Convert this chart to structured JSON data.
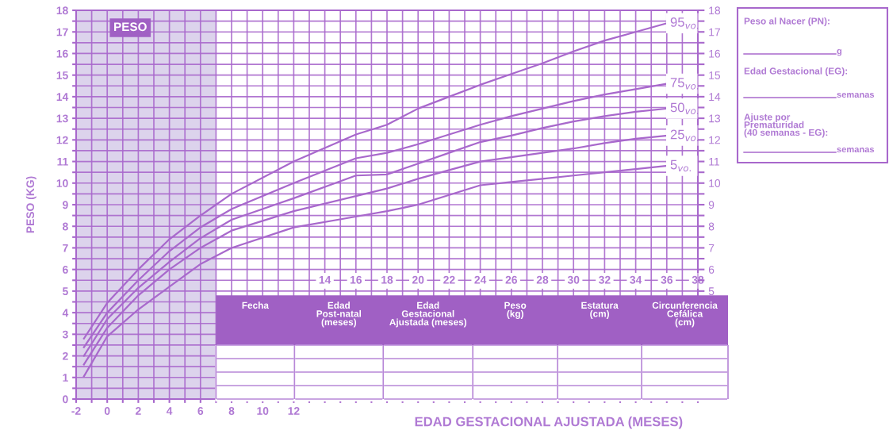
{
  "chart_data": [
    {
      "type": "line",
      "xlabel": "EDAD GESTACIONAL AJUSTADA (MESES)",
      "ylabel": "PESO (KG)",
      "x": [
        -1.5,
        0,
        2,
        4,
        6,
        8,
        12,
        16,
        18,
        20,
        22,
        24,
        26,
        28,
        30,
        32,
        34,
        36
      ],
      "series": [
        {
          "name": "95$_{vo.}$",
          "color": "#a868cc",
          "values": [
            2.8,
            4.45,
            6.0,
            7.4,
            8.5,
            9.5,
            11.0,
            12.25,
            12.7,
            13.45,
            14.0,
            14.55,
            15.05,
            15.55,
            16.1,
            16.6,
            17.0,
            17.4
          ]
        },
        {
          "name": "75$_{vo.}$",
          "color": "#a868cc",
          "values": [
            2.4,
            4.0,
            5.5,
            6.85,
            7.95,
            8.8,
            10.0,
            11.15,
            11.4,
            11.8,
            12.25,
            12.7,
            13.1,
            13.45,
            13.8,
            14.1,
            14.35,
            14.6
          ]
        },
        {
          "name": "50$_{vo.}$",
          "color": "#a868cc",
          "values": [
            2.0,
            3.7,
            5.15,
            6.35,
            7.45,
            8.3,
            9.3,
            10.35,
            10.4,
            10.9,
            11.4,
            11.9,
            12.2,
            12.55,
            12.85,
            13.1,
            13.3,
            13.45
          ]
        },
        {
          "name": "25$_{vo.}$",
          "color": "#a868cc",
          "values": [
            1.6,
            3.3,
            4.8,
            6.0,
            7.0,
            7.8,
            8.7,
            9.4,
            9.75,
            10.2,
            10.6,
            11.0,
            11.2,
            11.4,
            11.6,
            11.85,
            12.05,
            12.2
          ]
        },
        {
          "name": "5$_{vo.}$",
          "color": "#a868cc",
          "values": [
            1.05,
            2.9,
            4.15,
            5.2,
            6.25,
            7.0,
            7.95,
            8.45,
            8.7,
            9.0,
            9.45,
            9.9,
            10.05,
            10.2,
            10.35,
            10.5,
            10.65,
            10.8
          ]
        }
      ],
      "xlim": [
        -2,
        38
      ],
      "xticks": [
        -2,
        {
          "value": -1,
          "label": null
        },
        0,
        {
          "value": 1,
          "label": null
        },
        2,
        {
          "value": 3,
          "label": null
        },
        4,
        {
          "value": 5,
          "label": null
        },
        6,
        {
          "value": 7,
          "label": null
        },
        8,
        {
          "value": 9,
          "label": null
        },
        10,
        {
          "value": 11,
          "label": null
        },
        12,
        {
          "value": 13,
          "label": null
        },
        {
          "value": 14,
          "label": null
        },
        {
          "value": 15,
          "label": null
        },
        {
          "value": 16,
          "label": null
        },
        {
          "value": 17,
          "label": null
        },
        {
          "value": 18,
          "label": null
        },
        {
          "value": 19,
          "label": null
        },
        {
          "value": 20,
          "label": null
        },
        {
          "value": 21,
          "label": null
        },
        {
          "value": 22,
          "label": null
        },
        {
          "value": 23,
          "label": null
        },
        {
          "value": 24,
          "label": null
        },
        {
          "value": 25,
          "label": null
        },
        {
          "value": 26,
          "label": null
        },
        {
          "value": 27,
          "label": null
        },
        {
          "value": 28,
          "label": null
        },
        {
          "value": 29,
          "label": null
        },
        {
          "value": 30,
          "label": null
        },
        {
          "value": 31,
          "label": null
        },
        {
          "value": 32,
          "label": null
        },
        {
          "value": 33,
          "label": null
        },
        {
          "value": 34,
          "label": null
        },
        {
          "value": 35,
          "label": null
        },
        {
          "value": 36,
          "label": null
        },
        {
          "value": 37,
          "label": null
        },
        {
          "value": 38,
          "label": null
        }
      ],
      "x2lim": [
        -2,
        38
      ],
      "x2ticks": [
        14,
        16,
        18,
        20,
        22,
        24,
        26,
        28,
        30,
        32,
        34,
        36,
        38
      ],
      "ylim": [
        0,
        18
      ],
      "yticks": [
        0,
        {
          "value": 0.5,
          "label": null
        },
        1,
        {
          "value": 1.5,
          "label": null
        },
        2,
        {
          "value": 2.5,
          "label": null
        },
        3,
        {
          "value": 3.5,
          "label": null
        },
        4,
        {
          "value": 4.5,
          "label": null
        },
        5,
        {
          "value": 5.5,
          "label": null
        },
        6,
        {
          "value": 6.5,
          "label": null
        },
        7,
        {
          "value": 7.5,
          "label": null
        },
        8,
        {
          "value": 8.5,
          "label": null
        },
        9,
        {
          "value": 9.5,
          "label": null
        },
        10,
        {
          "value": 10.5,
          "label": null
        },
        11,
        {
          "value": 11.5,
          "label": null
        },
        12,
        {
          "value": 12.5,
          "label": null
        },
        13,
        {
          "value": 13.5,
          "label": null
        },
        14,
        {
          "value": 14.5,
          "label": null
        },
        15,
        {
          "value": 15.5,
          "label": null
        },
        16,
        {
          "value": 16.5,
          "label": null
        },
        17,
        {
          "value": 17.5,
          "label": null
        },
        18
      ],
      "y2lim": [
        0,
        18
      ],
      "y2ticks": [
        5,
        {
          "value": 5.5,
          "label": null
        },
        6,
        {
          "value": 6.5,
          "label": null
        },
        7,
        {
          "value": 7.5,
          "label": null
        },
        8,
        {
          "value": 8.5,
          "label": null
        },
        9,
        {
          "value": 9.5,
          "label": null
        },
        10,
        {
          "value": 10.5,
          "label": null
        },
        11,
        {
          "value": 11.5,
          "label": null
        },
        12,
        {
          "value": 12.5,
          "label": null
        },
        13,
        {
          "value": 13.5,
          "label": null
        },
        14,
        {
          "value": 14.5,
          "label": null
        },
        15,
        {
          "value": 15.5,
          "label": null
        },
        16,
        {
          "value": 16.5,
          "label": null
        },
        17,
        {
          "value": 17.5,
          "label": null
        },
        18
      ],
      "bands": [
        {
          "axis": "x",
          "from": -2,
          "to": 7,
          "color": "#dcd3ec"
        }
      ],
      "grid": true,
      "marker": "none",
      "line_style": "solid",
      "legend": false,
      "annotations": [
        "PESO",
        "Fecha",
        "Edad\nPost-natal\n(meses)",
        "Edad\nGestacional\nAjustada (meses)",
        "Peso\n(kg)",
        "Estatura\n(cm)",
        "Circunferencia\nCefálica\n(cm)"
      ]
    },
    {
      "type": "other",
      "annotations": [
        "Peso al Nacer (PN):",
        "g",
        "Edad Gestacional (EG):",
        "semanas",
        "Ajuste por\nPrematuridad\n(40 semanas - EG):",
        "semanas"
      ]
    }
  ]
}
